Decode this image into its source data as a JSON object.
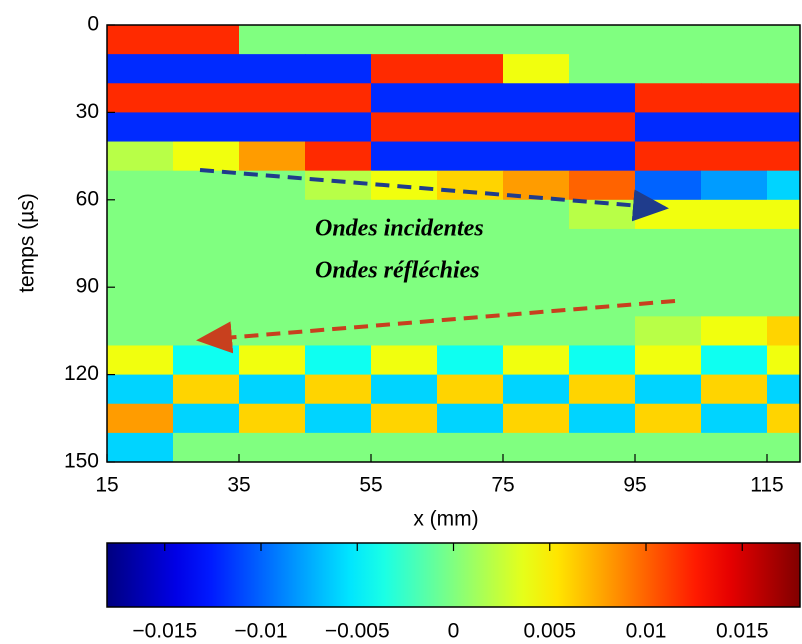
{
  "chart_data": {
    "type": "heatmap",
    "x_label": "x (mm)",
    "y_label": "temps (µs)",
    "annotations": [
      {
        "text": "Ondes incidentes",
        "color": "#1f3c8c"
      },
      {
        "text": "Ondes réfléchies",
        "color": "#c8401e"
      }
    ],
    "x": [
      20,
      30,
      40,
      50,
      60,
      70,
      80,
      90,
      100,
      110,
      120
    ],
    "y": [
      5,
      15,
      25,
      35,
      45,
      55,
      65,
      75,
      85,
      95,
      105,
      115,
      125,
      135,
      145
    ],
    "z": [
      [
        0.012,
        0.012,
        0,
        0,
        0,
        0,
        0,
        0,
        0,
        0,
        0
      ],
      [
        -0.012,
        -0.012,
        -0.012,
        -0.012,
        0.012,
        0.012,
        0.004,
        0,
        0,
        0,
        0
      ],
      [
        0.012,
        0.012,
        0.012,
        0.012,
        -0.012,
        -0.012,
        -0.012,
        -0.012,
        0.012,
        0.012,
        0.012
      ],
      [
        -0.012,
        -0.012,
        -0.012,
        -0.012,
        0.012,
        0.012,
        0.012,
        0.012,
        -0.012,
        -0.012,
        -0.012
      ],
      [
        0.002,
        0.004,
        0.008,
        0.012,
        -0.012,
        -0.012,
        -0.012,
        -0.012,
        0.012,
        0.012,
        0.012
      ],
      [
        0,
        0,
        0,
        0.002,
        0.004,
        0.006,
        0.008,
        0.01,
        -0.01,
        -0.008,
        -0.006
      ],
      [
        0,
        0,
        0,
        0,
        0,
        0,
        0,
        0.002,
        0.004,
        0.004,
        0.004
      ],
      [
        0,
        0,
        0,
        0,
        0,
        0,
        0,
        0,
        0,
        0,
        0
      ],
      [
        0,
        0,
        0,
        0,
        0,
        0,
        0,
        0,
        0,
        0,
        0
      ],
      [
        0,
        0,
        0,
        0,
        0,
        0,
        0,
        0,
        0,
        0,
        0
      ],
      [
        0,
        0,
        0,
        0,
        0,
        0,
        0,
        0,
        0.002,
        0.004,
        0.006
      ],
      [
        0.004,
        -0.004,
        0.004,
        -0.004,
        0.004,
        -0.004,
        0.004,
        -0.004,
        0.004,
        -0.004,
        0.004
      ],
      [
        -0.006,
        0.006,
        -0.006,
        0.006,
        -0.006,
        0.006,
        -0.006,
        0.006,
        -0.006,
        0.006,
        -0.006
      ],
      [
        0.008,
        -0.006,
        0.006,
        -0.006,
        0.006,
        -0.006,
        0.006,
        -0.006,
        0.006,
        -0.006,
        0.006
      ],
      [
        -0.006,
        0,
        0,
        0,
        0,
        0,
        0,
        0,
        0,
        0,
        0
      ]
    ],
    "xlim": [
      15,
      120
    ],
    "ylim": [
      0,
      150
    ],
    "y_inverted": true,
    "xticks": [
      15,
      35,
      55,
      75,
      95,
      115
    ],
    "yticks": [
      0,
      30,
      60,
      90,
      120,
      150
    ],
    "colormap": "jet",
    "clim": [
      -0.018,
      0.018
    ],
    "cticks": [
      {
        "value": -0.015,
        "label": "−0.015"
      },
      {
        "value": -0.01,
        "label": "−0.01"
      },
      {
        "value": -0.005,
        "label": "−0.005"
      },
      0,
      0.005,
      0.01,
      0.015
    ]
  }
}
